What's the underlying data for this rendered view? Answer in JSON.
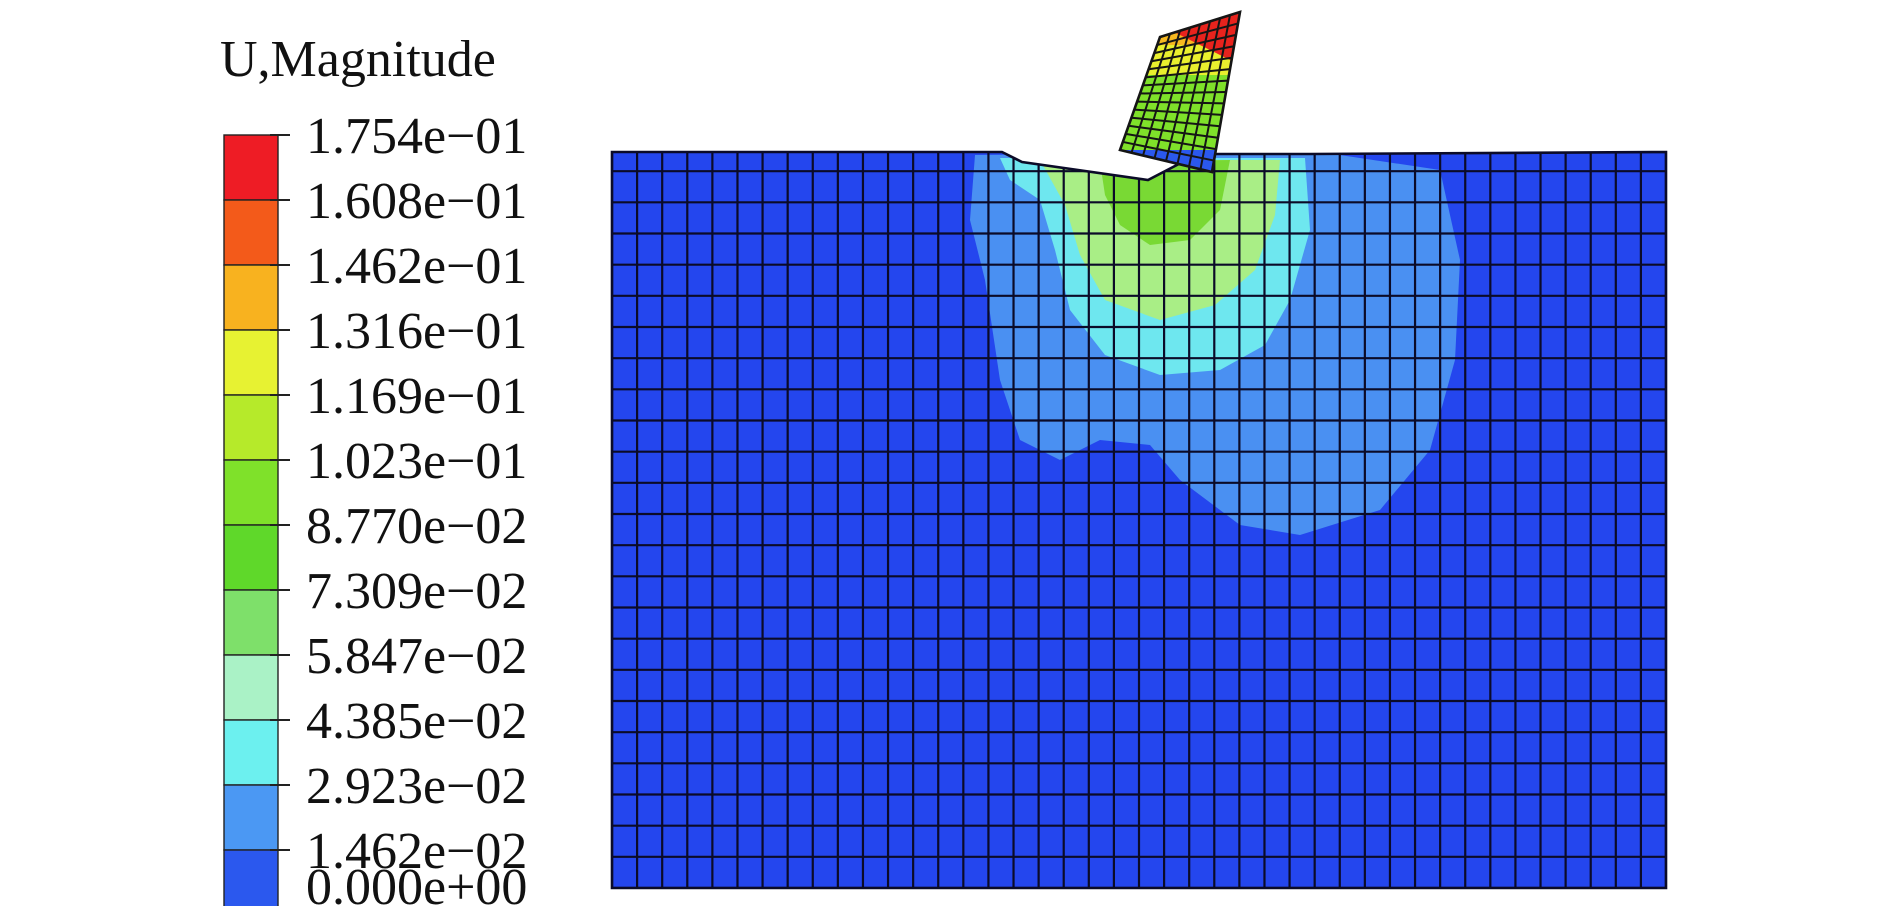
{
  "legend": {
    "title": "U,Magnitude",
    "labels": [
      "1.754e−01",
      "1.608e−01",
      "1.462e−01",
      "1.316e−01",
      "1.169e−01",
      "1.023e−01",
      "8.770e−02",
      "7.309e−02",
      "5.847e−02",
      "4.385e−02",
      "2.923e−02",
      "1.462e−02",
      "0.000e+00"
    ],
    "colors": [
      "#ee1c25",
      "#f35a1a",
      "#f8b21f",
      "#e7f232",
      "#b6ea2a",
      "#7fe12a",
      "#5fd82a",
      "#7ee06a",
      "#aaf2c6",
      "#6cf0ef",
      "#4b98f3",
      "#2b58ee"
    ]
  },
  "contour_colors": {
    "base": "#2446ee",
    "level1": "#4a90f2",
    "level2": "#6ee7ef",
    "level3": "#a9ee86",
    "level4": "#79d934",
    "level5": "#e9ef2e",
    "level6": "#f6b820",
    "level7": "#e8231d"
  }
}
